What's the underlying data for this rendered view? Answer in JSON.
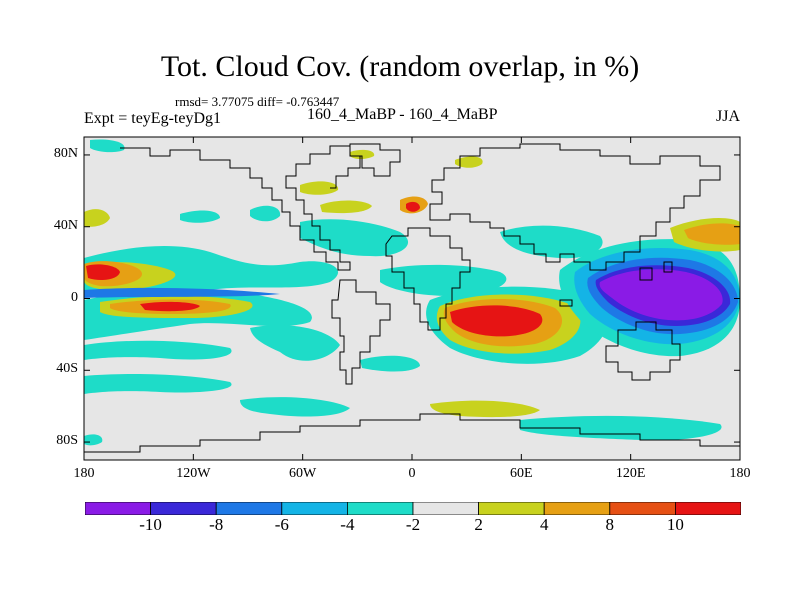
{
  "title": "Tot. Cloud Cov. (random overlap, in %)",
  "stats": "rmsd= 3.77075 diff= -0.763447",
  "left_label": "Expt = teyEg-teyDg1",
  "center_label": "160_4_MaBP - 160_4_MaBP",
  "right_label": "JJA",
  "lat_ticks": [
    {
      "label": "80N",
      "lat": 80
    },
    {
      "label": "40N",
      "lat": 40
    },
    {
      "label": "0",
      "lat": 0
    },
    {
      "label": "40S",
      "lat": -40
    },
    {
      "label": "80S",
      "lat": -80
    }
  ],
  "lon_ticks": [
    {
      "label": "180",
      "lon": -180
    },
    {
      "label": "120W",
      "lon": -120
    },
    {
      "label": "60W",
      "lon": -60
    },
    {
      "label": "0",
      "lon": 0
    },
    {
      "label": "60E",
      "lon": 60
    },
    {
      "label": "120E",
      "lon": 120
    },
    {
      "label": "180",
      "lon": 180
    }
  ],
  "colorbar": {
    "labels": [
      "-10",
      "-8",
      "-6",
      "-4",
      "-2",
      "2",
      "4",
      "8",
      "10"
    ],
    "colors": [
      "#8a1be6",
      "#3a28d8",
      "#1e78e6",
      "#14b4e6",
      "#1edcc8",
      "#e6e6e6",
      "#c8d21e",
      "#e6a014",
      "#e65014",
      "#e61414"
    ]
  },
  "colors": {
    "background": "#e6e6e6",
    "coast": "#000000"
  }
}
